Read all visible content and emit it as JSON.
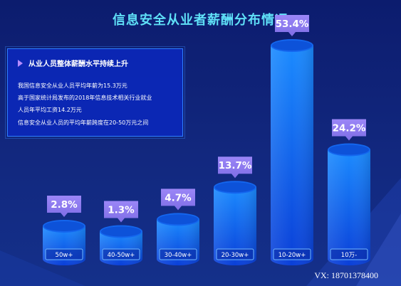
{
  "page": {
    "title": "信息安全从业者薪酬分布情况"
  },
  "info_box": {
    "heading": "从业人员整体薪酬水平持续上升",
    "lines": [
      "我国信息安全从业人员平均年薪为15.3万元",
      "高于国家统计局发布的2018年信息技术相关行业就业",
      "人员年平均工资14.2万元",
      "信息安全从业人员的平均年薪跨度在20-50万元之间"
    ]
  },
  "colors": {
    "title": "#5fe0f7",
    "bar_top": "#1b8bff",
    "bar_bottom": "#0a3fd8",
    "label_bg": "#8f7cf0"
  },
  "chart_data": {
    "type": "bar",
    "categories": [
      "50w+",
      "40-50w+",
      "30-40w+",
      "20-30w+",
      "10-20w+",
      "10万-"
    ],
    "values": [
      2.8,
      1.3,
      4.7,
      13.7,
      53.4,
      24.2
    ],
    "value_labels": [
      "2.8%",
      "1.3%",
      "4.7%",
      "13.7%",
      "53.4%",
      "24.2%"
    ],
    "title": "",
    "xlabel": "",
    "ylabel": "",
    "grid": false,
    "legend": "none"
  },
  "watermark": "VX: 18701378400"
}
